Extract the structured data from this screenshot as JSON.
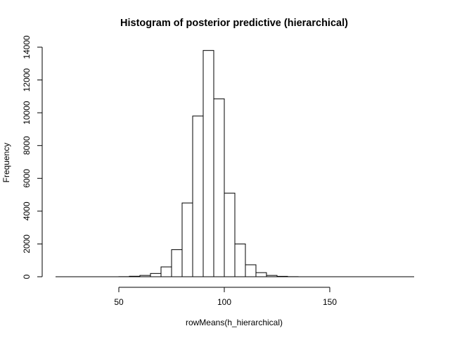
{
  "chart_data": {
    "type": "bar",
    "title": "Histogram of posterior predictive (hierarchical)",
    "xlabel": "rowMeans(h_hierarchical)",
    "ylabel": "Frequency",
    "bin_width": 5,
    "bins": [
      {
        "start": 20,
        "end": 25,
        "count": 0
      },
      {
        "start": 25,
        "end": 30,
        "count": 0
      },
      {
        "start": 30,
        "end": 35,
        "count": 0
      },
      {
        "start": 35,
        "end": 40,
        "count": 0
      },
      {
        "start": 40,
        "end": 45,
        "count": 0
      },
      {
        "start": 45,
        "end": 50,
        "count": 0
      },
      {
        "start": 50,
        "end": 55,
        "count": 5
      },
      {
        "start": 55,
        "end": 60,
        "count": 30
      },
      {
        "start": 60,
        "end": 65,
        "count": 80
      },
      {
        "start": 65,
        "end": 70,
        "count": 200
      },
      {
        "start": 70,
        "end": 75,
        "count": 600
      },
      {
        "start": 75,
        "end": 80,
        "count": 1650
      },
      {
        "start": 80,
        "end": 85,
        "count": 4500
      },
      {
        "start": 85,
        "end": 90,
        "count": 9800
      },
      {
        "start": 90,
        "end": 95,
        "count": 13800
      },
      {
        "start": 95,
        "end": 100,
        "count": 10850
      },
      {
        "start": 100,
        "end": 105,
        "count": 5100
      },
      {
        "start": 105,
        "end": 110,
        "count": 2000
      },
      {
        "start": 110,
        "end": 115,
        "count": 730
      },
      {
        "start": 115,
        "end": 120,
        "count": 250
      },
      {
        "start": 120,
        "end": 125,
        "count": 80
      },
      {
        "start": 125,
        "end": 130,
        "count": 25
      },
      {
        "start": 130,
        "end": 135,
        "count": 5
      },
      {
        "start": 135,
        "end": 140,
        "count": 0
      },
      {
        "start": 140,
        "end": 145,
        "count": 0
      },
      {
        "start": 145,
        "end": 150,
        "count": 0
      },
      {
        "start": 150,
        "end": 155,
        "count": 0
      },
      {
        "start": 155,
        "end": 160,
        "count": 0
      },
      {
        "start": 160,
        "end": 165,
        "count": 0
      },
      {
        "start": 165,
        "end": 170,
        "count": 0
      },
      {
        "start": 170,
        "end": 175,
        "count": 0
      },
      {
        "start": 175,
        "end": 180,
        "count": 0
      },
      {
        "start": 180,
        "end": 185,
        "count": 0
      },
      {
        "start": 185,
        "end": 190,
        "count": 0
      }
    ],
    "xlim": [
      20,
      190
    ],
    "ylim": [
      0,
      14000
    ],
    "x_ticks": [
      "50",
      "100",
      "150"
    ],
    "y_ticks": [
      "0",
      "2000",
      "4000",
      "6000",
      "8000",
      "10000",
      "12000",
      "14000"
    ],
    "grid": false,
    "bar_fill": "#ffffff",
    "bar_stroke": "#000000"
  }
}
